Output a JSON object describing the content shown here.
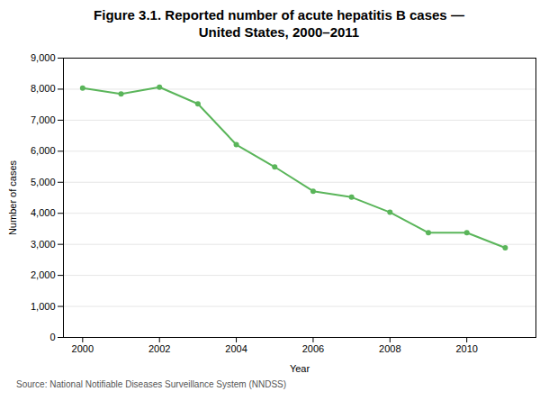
{
  "chart_data": {
    "type": "line",
    "title": "Figure 3.1. Reported number of acute hepatitis B cases —",
    "subtitle": "United States, 2000–2011",
    "source": "Source: National  Notifiable  Diseases  Surveillance  System (NNDSS)",
    "x": [
      2000,
      2001,
      2002,
      2003,
      2004,
      2005,
      2006,
      2007,
      2008,
      2009,
      2010,
      2011
    ],
    "values": [
      8036,
      7843,
      8064,
      7526,
      6212,
      5494,
      4713,
      4519,
      4033,
      3374,
      3374,
      2890
    ],
    "xlabel": "Year",
    "ylabel": "Number of cases",
    "color": "#5ab55a",
    "marker": "circle",
    "xlim": [
      1999.5,
      2011.8
    ],
    "xticks": [
      2000,
      2002,
      2004,
      2006,
      2008,
      2010
    ],
    "ylim": [
      0,
      9000
    ],
    "yticks": [
      0,
      {
        "value": 1000,
        "label": "1,000"
      },
      {
        "value": 2000,
        "label": "2,000"
      },
      {
        "value": 3000,
        "label": "3,000"
      },
      {
        "value": 4000,
        "label": "4,000"
      },
      {
        "value": 5000,
        "label": "5,000"
      },
      {
        "value": 6000,
        "label": "6,000"
      },
      {
        "value": 7000,
        "label": "7,000"
      },
      {
        "value": 8000,
        "label": "8,000"
      },
      {
        "value": 9000,
        "label": "9,000"
      }
    ],
    "grid": true
  }
}
